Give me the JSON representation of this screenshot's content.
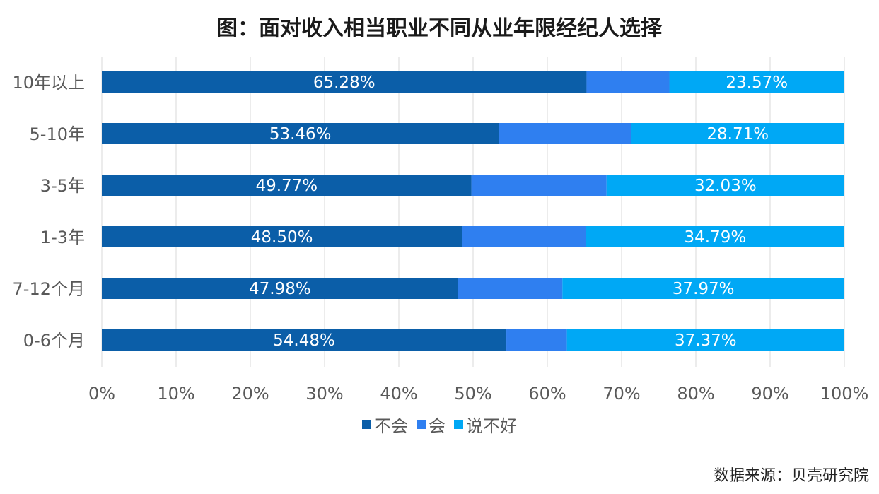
{
  "chart_data": {
    "type": "bar",
    "orientation": "horizontal",
    "stacked": true,
    "title": "图：面对收入相当职业不同从业年限经纪人选择",
    "categories": [
      "10年以上",
      "5-10年",
      "3-5年",
      "1-3年",
      "7-12个月",
      "0-6个月"
    ],
    "series": [
      {
        "name": "不会",
        "color": "#0b5ea8",
        "values": [
          65.28,
          53.46,
          49.77,
          48.5,
          47.98,
          54.48
        ],
        "labels": [
          "65.28%",
          "53.46%",
          "49.77%",
          "48.50%",
          "47.98%",
          "54.48%"
        ]
      },
      {
        "name": "会",
        "color": "#2f7ff0",
        "values": [
          11.15,
          17.83,
          18.2,
          16.71,
          14.05,
          8.15
        ],
        "labels": [
          "",
          "",
          "",
          "",
          "",
          ""
        ]
      },
      {
        "name": "说不好",
        "color": "#00a8f5",
        "values": [
          23.57,
          28.71,
          32.03,
          34.79,
          37.97,
          37.37
        ],
        "labels": [
          "23.57%",
          "28.71%",
          "32.03%",
          "34.79%",
          "37.97%",
          "37.37%"
        ]
      }
    ],
    "xlim": [
      0,
      100
    ],
    "xticks": [
      "0%",
      "10%",
      "20%",
      "30%",
      "40%",
      "50%",
      "60%",
      "70%",
      "80%",
      "90%",
      "100%"
    ],
    "grid": true,
    "legend_position": "bottom"
  },
  "source": "数据来源：贝壳研究院"
}
